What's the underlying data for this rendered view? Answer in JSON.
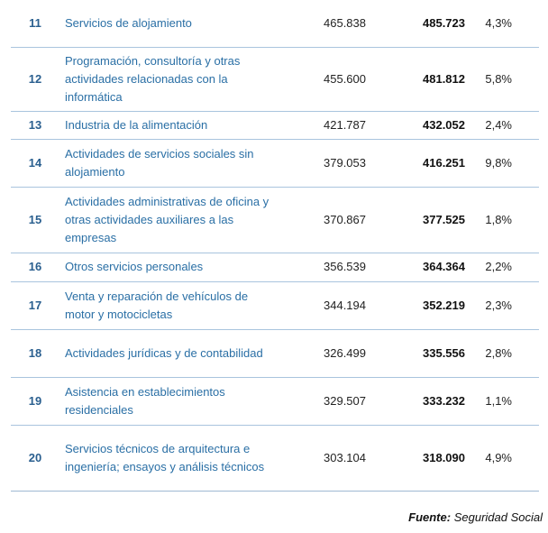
{
  "rows": [
    {
      "rank": "11",
      "activity": "Servicios de alojamiento",
      "v2018": "465.838",
      "v2019": "485.723",
      "pct": "4,3%"
    },
    {
      "rank": "12",
      "activity": "Programación, consultoría y otras actividades relacionadas con la informática",
      "v2018": "455.600",
      "v2019": "481.812",
      "pct": "5,8%"
    },
    {
      "rank": "13",
      "activity": "Industria de la alimentación",
      "v2018": "421.787",
      "v2019": "432.052",
      "pct": "2,4%"
    },
    {
      "rank": "14",
      "activity": "Actividades de servicios sociales sin alojamiento",
      "v2018": "379.053",
      "v2019": "416.251",
      "pct": "9,8%"
    },
    {
      "rank": "15",
      "activity": "Actividades administrativas de oficina y otras actividades auxiliares a las empresas",
      "v2018": "370.867",
      "v2019": "377.525",
      "pct": "1,8%"
    },
    {
      "rank": "16",
      "activity": "Otros servicios personales",
      "v2018": "356.539",
      "v2019": "364.364",
      "pct": "2,2%"
    },
    {
      "rank": "17",
      "activity": "Venta y reparación de vehículos de motor y motocicletas",
      "v2018": "344.194",
      "v2019": "352.219",
      "pct": "2,3%"
    },
    {
      "rank": "18",
      "activity": "Actividades jurídicas y de contabilidad",
      "v2018": "326.499",
      "v2019": "335.556",
      "pct": "2,8%"
    },
    {
      "rank": "19",
      "activity": "Asistencia en establecimientos residenciales",
      "v2018": "329.507",
      "v2019": "333.232",
      "pct": "1,1%"
    },
    {
      "rank": "20",
      "activity": "Servicios técnicos de arquitectura e ingeniería; ensayos y análisis técnicos",
      "v2018": "303.104",
      "v2019": "318.090",
      "pct": "4,9%"
    }
  ],
  "source": {
    "label": "Fuente:",
    "text": "Seguridad Social"
  },
  "colors": {
    "activity_text": "#2a6fa5",
    "rank_text": "#2a5f8f",
    "rule": "#a9c4de"
  }
}
